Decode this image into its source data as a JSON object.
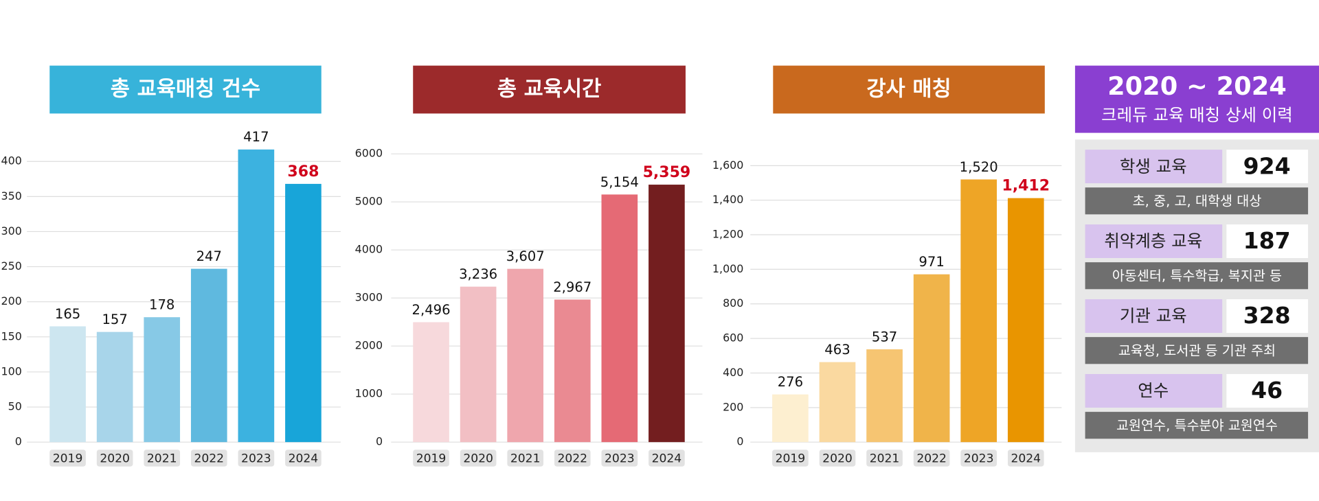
{
  "chart_data": [
    {
      "type": "bar",
      "title": "총 교육매칭 건수",
      "categories": [
        "2019",
        "2020",
        "2021",
        "2022",
        "2023",
        "2024"
      ],
      "values": [
        165,
        157,
        178,
        247,
        417,
        368
      ],
      "colors": [
        "#cde6f0",
        "#a8d5ea",
        "#87c9e6",
        "#5fb9df",
        "#3cb2e0",
        "#18a5d9"
      ],
      "label_colors": [
        "#111111",
        "#111111",
        "#111111",
        "#111111",
        "#111111",
        "#d0021b"
      ],
      "title_color": "#37b3da",
      "ylim": [
        0,
        420
      ],
      "yticks": [
        0,
        50,
        100,
        150,
        200,
        250,
        300,
        350,
        400
      ],
      "grid": true
    },
    {
      "type": "bar",
      "title": "총 교육시간",
      "categories": [
        "2019",
        "2020",
        "2021",
        "2022",
        "2023",
        "2024"
      ],
      "values": [
        2496,
        3236,
        3607,
        2967,
        5154,
        5359
      ],
      "value_labels": [
        "2,496",
        "3,236",
        "3,607",
        "2,967",
        "5,154",
        "5,359"
      ],
      "colors": [
        "#f7d9dc",
        "#f2bfc4",
        "#efa6ad",
        "#ea8a92",
        "#e56a75",
        "#731e1f"
      ],
      "label_colors": [
        "#111111",
        "#111111",
        "#111111",
        "#111111",
        "#111111",
        "#d0021b"
      ],
      "title_color": "#9c2a2b",
      "ylim": [
        0,
        6000
      ],
      "yticks": [
        0,
        1000,
        2000,
        3000,
        4000,
        5000,
        6000
      ],
      "grid": true
    },
    {
      "type": "bar",
      "title": "강사 매칭",
      "categories": [
        "2019",
        "2020",
        "2021",
        "2022",
        "2023",
        "2024"
      ],
      "values": [
        276,
        463,
        537,
        971,
        1520,
        1412
      ],
      "value_labels": [
        "276",
        "463",
        "537",
        "971",
        "1,520",
        "1,412"
      ],
      "colors": [
        "#fdefd0",
        "#fad9a0",
        "#f6c572",
        "#f0b44a",
        "#eea526",
        "#e99500"
      ],
      "label_colors": [
        "#111111",
        "#111111",
        "#111111",
        "#111111",
        "#111111",
        "#d0021b"
      ],
      "title_color": "#c9691e",
      "ylim": [
        0,
        1600
      ],
      "yticks": [
        0,
        200,
        400,
        600,
        800,
        {
          "value": 1000,
          "label": "1,000"
        },
        {
          "value": 1200,
          "label": "1,200"
        },
        {
          "value": 1400,
          "label": "1,400"
        },
        {
          "value": 1600,
          "label": "1,600"
        }
      ],
      "grid": true
    }
  ],
  "panel": {
    "title": "2020 ~ 2024",
    "subtitle": "크레듀 교육 매칭 상세 이력",
    "rows": [
      {
        "label": "학생 교육",
        "value": 924,
        "note": "초, 중, 고, 대학생 대상"
      },
      {
        "label": "취약계층 교육",
        "value": 187,
        "note": "아동센터, 특수학급, 복지관 등"
      },
      {
        "label": "기관 교육",
        "value": 328,
        "note": "교육청, 도서관 등 기관 주최"
      },
      {
        "label": "연수",
        "value": 46,
        "note": "교원연수, 특수분야 교원연수"
      }
    ]
  }
}
